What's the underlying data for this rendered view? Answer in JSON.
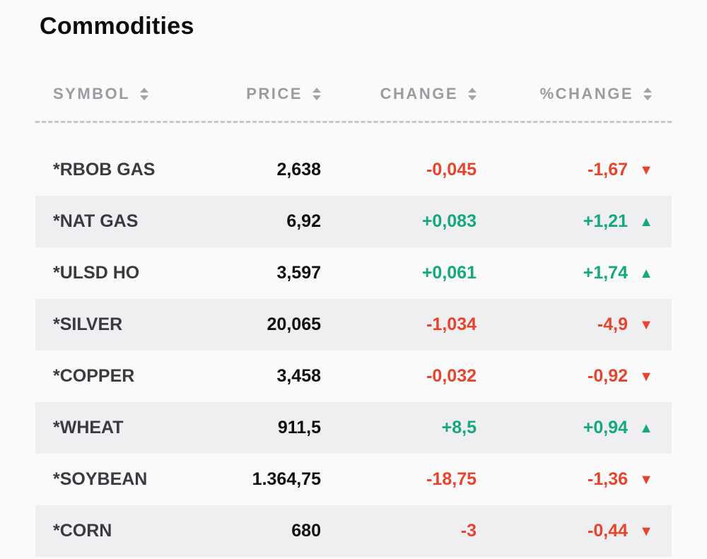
{
  "page": {
    "title": "Commodities"
  },
  "colors": {
    "up": "#14a97c",
    "down": "#e8432c",
    "header-gray": "#9b9ba1",
    "stripe": "#efeff2"
  },
  "table": {
    "headers": [
      {
        "label": "SYMBOL"
      },
      {
        "label": "PRICE"
      },
      {
        "label": "CHANGE"
      },
      {
        "label": "%CHANGE"
      }
    ],
    "rows": [
      {
        "symbol": "*RBOB GAS",
        "price": "2,638",
        "change": "-0,045",
        "pct_change": "-1,67",
        "trend": "down"
      },
      {
        "symbol": "*NAT GAS",
        "price": "6,92",
        "change": "+0,083",
        "pct_change": "+1,21",
        "trend": "up"
      },
      {
        "symbol": "*ULSD HO",
        "price": "3,597",
        "change": "+0,061",
        "pct_change": "+1,74",
        "trend": "up"
      },
      {
        "symbol": "*SILVER",
        "price": "20,065",
        "change": "-1,034",
        "pct_change": "-4,9",
        "trend": "down"
      },
      {
        "symbol": "*COPPER",
        "price": "3,458",
        "change": "-0,032",
        "pct_change": "-0,92",
        "trend": "down"
      },
      {
        "symbol": "*WHEAT",
        "price": "911,5",
        "change": "+8,5",
        "pct_change": "+0,94",
        "trend": "up"
      },
      {
        "symbol": "*SOYBEAN",
        "price": "1.364,75",
        "change": "-18,75",
        "pct_change": "-1,36",
        "trend": "down"
      },
      {
        "symbol": "*CORN",
        "price": "680",
        "change": "-3",
        "pct_change": "-0,44",
        "trend": "down"
      }
    ]
  }
}
